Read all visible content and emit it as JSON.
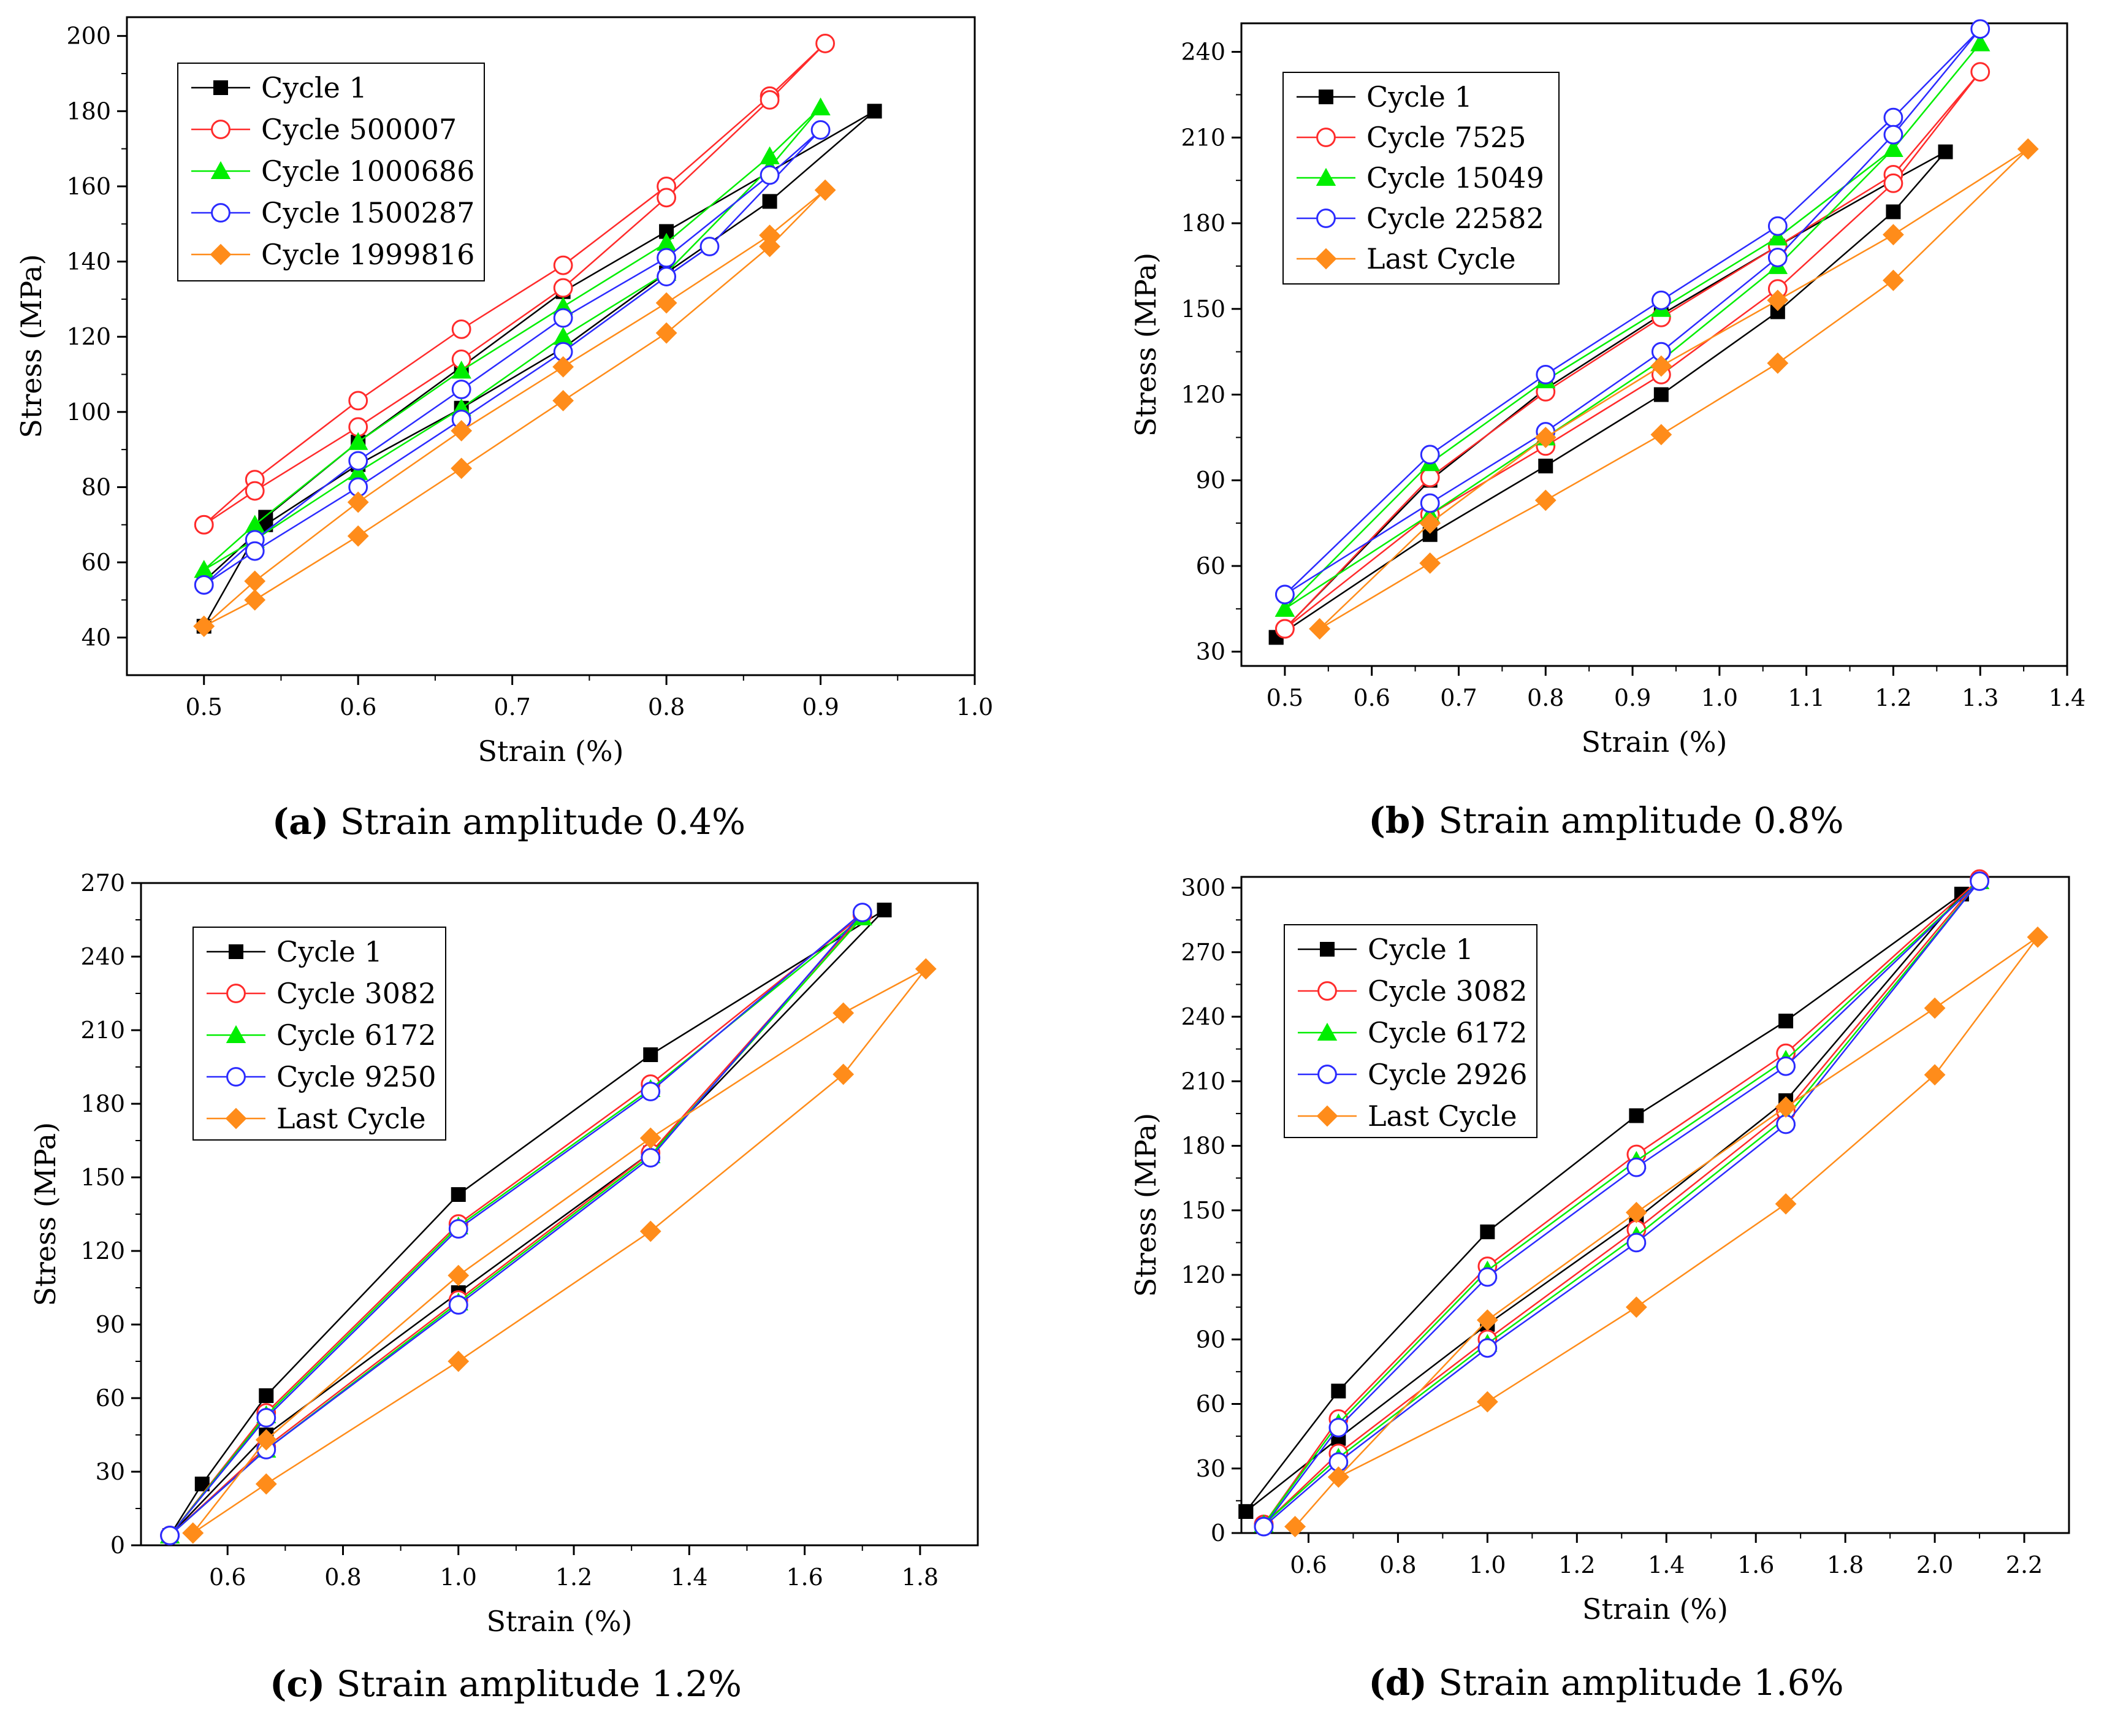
{
  "chart_data": [
    {
      "type": "line",
      "caption_letter": "(a)",
      "caption_text": " Strain amplitude 0.4%",
      "xlabel": "Strain (%)",
      "ylabel": "Stress (MPa)",
      "xlim": [
        0.45,
        1.0
      ],
      "ylim": [
        30,
        205
      ],
      "xticks": [
        0.5,
        0.6,
        0.7,
        0.8,
        0.9,
        1.0
      ],
      "xtick_labels": [
        "0.5",
        "0.6",
        "0.7",
        "0.8",
        "0.9",
        "1.0"
      ],
      "yticks": [
        40,
        60,
        80,
        100,
        120,
        140,
        160,
        180,
        200
      ],
      "ytick_labels": [
        "40",
        "60",
        "80",
        "100",
        "120",
        "140",
        "160",
        "180",
        "200"
      ],
      "legend_position": "top-left",
      "series": [
        {
          "name": "Cycle 1",
          "color": "#000000",
          "marker": "square",
          "x": [
            0.5,
            0.54,
            0.6,
            0.667,
            0.733,
            0.8,
            0.935,
            0.867,
            0.8,
            0.733,
            0.667,
            0.6,
            0.54,
            0.5
          ],
          "y": [
            43,
            72,
            92,
            112,
            132,
            148,
            180,
            156,
            137,
            117,
            101,
            86,
            70,
            55
          ]
        },
        {
          "name": "Cycle 500007",
          "color": "#FF2B2B",
          "marker": "circle-open",
          "x": [
            0.5,
            0.533,
            0.6,
            0.667,
            0.733,
            0.8,
            0.867,
            0.903,
            0.867,
            0.8,
            0.733,
            0.667,
            0.6,
            0.533,
            0.5
          ],
          "y": [
            70,
            82,
            103,
            122,
            139,
            160,
            184,
            198,
            183,
            157,
            133,
            114,
            96,
            79,
            70
          ]
        },
        {
          "name": "Cycle 1000686",
          "color": "#00EE00",
          "marker": "triangle",
          "x": [
            0.5,
            0.533,
            0.6,
            0.667,
            0.733,
            0.8,
            0.867,
            0.9,
            0.867,
            0.8,
            0.733,
            0.667,
            0.6,
            0.533,
            0.5
          ],
          "y": [
            58,
            70,
            92,
            111,
            128,
            145,
            168,
            181,
            165,
            137,
            120,
            101,
            84,
            66,
            58
          ]
        },
        {
          "name": "Cycle 1500287",
          "color": "#2B2BFF",
          "marker": "circle-open",
          "x": [
            0.5,
            0.533,
            0.6,
            0.667,
            0.733,
            0.8,
            0.867,
            0.9,
            0.828,
            0.8,
            0.733,
            0.667,
            0.6,
            0.533,
            0.5
          ],
          "y": [
            54,
            66,
            87,
            106,
            125,
            141,
            163,
            175,
            144,
            136,
            116,
            98,
            80,
            63,
            54
          ]
        },
        {
          "name": "Cycle 1999816",
          "color": "#FF8C1A",
          "marker": "diamond",
          "x": [
            0.5,
            0.533,
            0.6,
            0.667,
            0.733,
            0.8,
            0.867,
            0.903,
            0.867,
            0.8,
            0.733,
            0.667,
            0.6,
            0.533,
            0.5
          ],
          "y": [
            43,
            55,
            76,
            95,
            112,
            129,
            147,
            159,
            144,
            121,
            103,
            85,
            67,
            50,
            43
          ]
        }
      ]
    },
    {
      "type": "line",
      "caption_letter": "(b)",
      "caption_text": " Strain amplitude 0.8%",
      "xlabel": "Strain (%)",
      "ylabel": "Stress (MPa)",
      "xlim": [
        0.45,
        1.4
      ],
      "ylim": [
        25,
        250
      ],
      "xticks": [
        0.5,
        0.6,
        0.7,
        0.8,
        0.9,
        1.0,
        1.1,
        1.2,
        1.3,
        1.4
      ],
      "xtick_labels": [
        "0.5",
        "0.6",
        "0.7",
        "0.8",
        "0.9",
        "1.0",
        "1.1",
        "1.2",
        "1.3",
        "1.4"
      ],
      "yticks": [
        30,
        60,
        90,
        120,
        150,
        180,
        210,
        240
      ],
      "ytick_labels": [
        "30",
        "60",
        "90",
        "120",
        "150",
        "180",
        "210",
        "240"
      ],
      "legend_position": "top-left",
      "series": [
        {
          "name": "Cycle 1",
          "color": "#000000",
          "marker": "square",
          "x": [
            0.49,
            0.667,
            0.8,
            0.933,
            1.067,
            1.2,
            1.26,
            1.2,
            1.067,
            0.933,
            0.8,
            0.667,
            0.49
          ],
          "y": [
            35,
            90,
            122,
            148,
            172,
            195,
            205,
            184,
            149,
            120,
            95,
            71,
            35
          ]
        },
        {
          "name": "Cycle 7525",
          "color": "#FF2B2B",
          "marker": "circle-open",
          "x": [
            0.5,
            0.667,
            0.8,
            0.933,
            1.067,
            1.2,
            1.3,
            1.2,
            1.067,
            0.933,
            0.8,
            0.667,
            0.5
          ],
          "y": [
            38,
            91,
            121,
            147,
            172,
            197,
            233,
            194,
            157,
            127,
            102,
            78,
            38
          ]
        },
        {
          "name": "Cycle 15049",
          "color": "#00EE00",
          "marker": "triangle",
          "x": [
            0.5,
            0.667,
            0.8,
            0.933,
            1.067,
            1.2,
            1.3,
            1.2,
            1.067,
            0.933,
            0.8,
            0.667,
            0.5
          ],
          "y": [
            45,
            96,
            125,
            150,
            175,
            206,
            243,
            206,
            165,
            132,
            105,
            78,
            45
          ]
        },
        {
          "name": "Cycle 22582",
          "color": "#2B2BFF",
          "marker": "circle-open",
          "x": [
            0.5,
            0.667,
            0.8,
            0.933,
            1.067,
            1.2,
            1.3,
            1.2,
            1.067,
            0.933,
            0.8,
            0.667,
            0.5
          ],
          "y": [
            50,
            99,
            127,
            153,
            179,
            217,
            248,
            211,
            168,
            135,
            107,
            82,
            50
          ]
        },
        {
          "name": "Last Cycle",
          "color": "#FF8C1A",
          "marker": "diamond",
          "x": [
            0.54,
            0.667,
            0.8,
            0.933,
            1.067,
            1.2,
            1.355,
            1.2,
            1.067,
            0.933,
            0.8,
            0.667,
            0.54
          ],
          "y": [
            38,
            75,
            105,
            130,
            153,
            176,
            206,
            160,
            131,
            106,
            83,
            61,
            38
          ]
        }
      ]
    },
    {
      "type": "line",
      "caption_letter": "(c)",
      "caption_text": " Strain amplitude 1.2%",
      "xlabel": "Strain (%)",
      "ylabel": "Stress (MPa)",
      "xlim": [
        0.45,
        1.9
      ],
      "ylim": [
        0,
        270
      ],
      "xticks": [
        0.6,
        0.8,
        1.0,
        1.2,
        1.4,
        1.6,
        1.8
      ],
      "xtick_labels": [
        "0.6",
        "0.8",
        "1.0",
        "1.2",
        "1.4",
        "1.6",
        "1.8"
      ],
      "yticks": [
        0,
        30,
        60,
        90,
        120,
        150,
        180,
        210,
        240,
        270
      ],
      "ytick_labels": [
        "0",
        "30",
        "60",
        "90",
        "120",
        "150",
        "180",
        "210",
        "240",
        "270"
      ],
      "legend_position": "top-left",
      "series": [
        {
          "name": "Cycle 1",
          "color": "#000000",
          "marker": "square",
          "x": [
            0.5,
            0.556,
            0.667,
            1.0,
            1.333,
            1.738,
            1.333,
            1.0,
            0.667,
            0.5
          ],
          "y": [
            4,
            25,
            61,
            143,
            200,
            259,
            160,
            103,
            45,
            4
          ]
        },
        {
          "name": "Cycle 3082",
          "color": "#FF2B2B",
          "marker": "circle-open",
          "x": [
            0.5,
            0.667,
            1.0,
            1.333,
            1.7,
            1.333,
            1.0,
            0.667,
            0.5
          ],
          "y": [
            4,
            54,
            131,
            188,
            257,
            160,
            100,
            40,
            4
          ]
        },
        {
          "name": "Cycle 6172",
          "color": "#00EE00",
          "marker": "triangle",
          "x": [
            0.5,
            0.667,
            1.0,
            1.333,
            1.7,
            1.333,
            1.0,
            0.667,
            0.5
          ],
          "y": [
            4,
            53,
            130,
            186,
            256,
            159,
            99,
            39,
            4
          ]
        },
        {
          "name": "Cycle 9250",
          "color": "#2B2BFF",
          "marker": "circle-open",
          "x": [
            0.5,
            0.667,
            1.0,
            1.333,
            1.7,
            1.333,
            1.0,
            0.667,
            0.5
          ],
          "y": [
            4,
            52,
            129,
            185,
            258,
            158,
            98,
            39,
            4
          ]
        },
        {
          "name": "Last Cycle",
          "color": "#FF8C1A",
          "marker": "diamond",
          "x": [
            0.54,
            0.667,
            1.0,
            1.333,
            1.667,
            1.81,
            1.667,
            1.333,
            1.0,
            0.667,
            0.54
          ],
          "y": [
            5,
            43,
            110,
            166,
            217,
            235,
            192,
            128,
            75,
            25,
            5
          ]
        }
      ]
    },
    {
      "type": "line",
      "caption_letter": "(d)",
      "caption_text": " Strain amplitude 1.6%",
      "xlabel": "Strain (%)",
      "ylabel": "Stress (MPa)",
      "xlim": [
        0.45,
        2.3
      ],
      "ylim": [
        0,
        305
      ],
      "xticks": [
        0.6,
        0.8,
        1.0,
        1.2,
        1.4,
        1.6,
        1.8,
        2.0,
        2.2
      ],
      "xtick_labels": [
        "0.6",
        "0.8",
        "1.0",
        "1.2",
        "1.4",
        "1.6",
        "1.8",
        "2.0",
        "2.2"
      ],
      "yticks": [
        0,
        30,
        60,
        90,
        120,
        150,
        180,
        210,
        240,
        270,
        300
      ],
      "ytick_labels": [
        "0",
        "30",
        "60",
        "90",
        "120",
        "150",
        "180",
        "210",
        "240",
        "270",
        "300"
      ],
      "legend_position": "top-left",
      "series": [
        {
          "name": "Cycle 1",
          "color": "#000000",
          "marker": "square",
          "x": [
            0.46,
            0.667,
            1.0,
            1.333,
            1.667,
            2.06,
            1.667,
            1.333,
            1.0,
            0.667,
            0.46
          ],
          "y": [
            10,
            66,
            140,
            194,
            238,
            297,
            201,
            146,
            97,
            44,
            10
          ]
        },
        {
          "name": "Cycle 3082",
          "color": "#FF2B2B",
          "marker": "circle-open",
          "x": [
            0.5,
            0.667,
            1.0,
            1.333,
            1.667,
            2.1,
            1.667,
            1.333,
            1.0,
            0.667,
            0.5
          ],
          "y": [
            4,
            53,
            124,
            176,
            223,
            304,
            196,
            141,
            90,
            37,
            4
          ]
        },
        {
          "name": "Cycle 6172",
          "color": "#00EE00",
          "marker": "triangle",
          "x": [
            0.5,
            0.667,
            1.0,
            1.333,
            1.667,
            2.1,
            1.667,
            1.333,
            1.0,
            0.667,
            0.5
          ],
          "y": [
            4,
            51,
            122,
            173,
            220,
            303,
            193,
            138,
            88,
            35,
            4
          ]
        },
        {
          "name": "Cycle 2926",
          "color": "#2B2BFF",
          "marker": "circle-open",
          "x": [
            0.5,
            0.667,
            1.0,
            1.333,
            1.667,
            2.1,
            1.667,
            1.333,
            1.0,
            0.667,
            0.5
          ],
          "y": [
            3,
            49,
            119,
            170,
            217,
            303,
            190,
            135,
            86,
            33,
            3
          ]
        },
        {
          "name": "Last Cycle",
          "color": "#FF8C1A",
          "marker": "diamond",
          "x": [
            0.57,
            0.667,
            1.0,
            1.333,
            1.667,
            2.0,
            2.23,
            2.0,
            1.667,
            1.333,
            1.0,
            0.667,
            0.57
          ],
          "y": [
            3,
            26,
            99,
            149,
            198,
            244,
            277,
            213,
            153,
            105,
            61,
            26,
            3
          ]
        }
      ]
    }
  ]
}
